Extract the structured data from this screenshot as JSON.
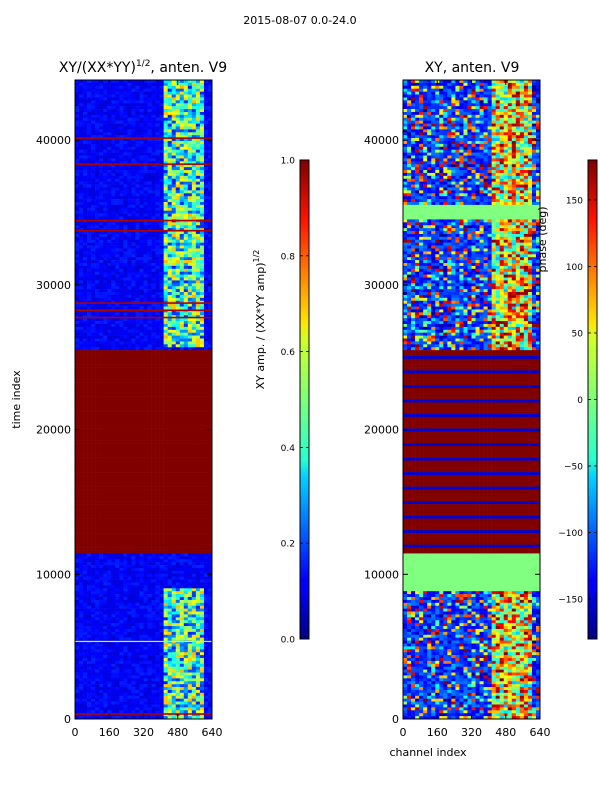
{
  "figure": {
    "suptitle": "2015-08-07 0.0-24.0"
  },
  "chart_data": [
    {
      "type": "heatmap",
      "title": "XY/(XX*YY)^{1/2}, anten. V9",
      "title_main": "XY/(XX*YY)",
      "title_sup": "1/2",
      "title_tail": ", anten. V9",
      "xlabel": "",
      "ylabel": "time index",
      "xlim": [
        0,
        640
      ],
      "ylim": [
        0,
        44160
      ],
      "xticks": [
        0,
        160,
        320,
        480,
        640
      ],
      "yticks": [
        0,
        10000,
        20000,
        30000,
        40000
      ],
      "colormap": "jet",
      "colorbar": {
        "label": "XY amp. / (XX*YY amp)^{1/2}",
        "label_main": "XY amp. / (XX*YY amp)",
        "label_sup": "1/2",
        "range": [
          0.0,
          1.0
        ],
        "ticks": [
          0.0,
          0.2,
          0.4,
          0.6,
          0.8,
          1.0
        ],
        "tick_labels": [
          "0.0",
          "0.2",
          "0.4",
          "0.6",
          "0.8",
          "1.0"
        ]
      }
    },
    {
      "type": "heatmap",
      "title": "XY, anten. V9",
      "xlabel": "channel index",
      "ylabel": "",
      "xlim": [
        0,
        640
      ],
      "ylim": [
        0,
        44160
      ],
      "xticks": [
        0,
        160,
        320,
        480,
        640
      ],
      "yticks": [
        0,
        10000,
        20000,
        30000,
        40000
      ],
      "colormap": "jet",
      "colorbar": {
        "label": "phase (deg)",
        "range": [
          -180,
          180
        ],
        "ticks": [
          -150,
          -100,
          -50,
          0,
          50,
          100,
          150
        ],
        "tick_labels": [
          "−150",
          "−100",
          "−50",
          "0",
          "50",
          "100",
          "150"
        ]
      }
    }
  ]
}
